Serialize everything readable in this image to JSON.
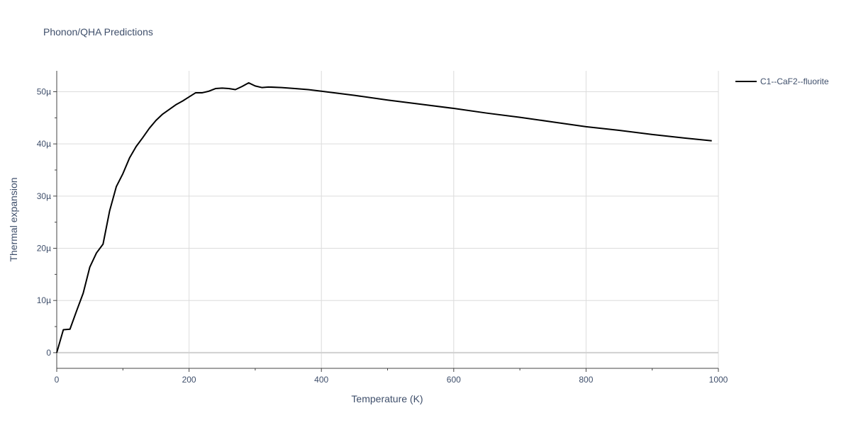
{
  "chart_data": {
    "type": "line",
    "title": "Phonon/QHA Predictions",
    "xlabel": "Temperature (K)",
    "ylabel": "Thermal expansion",
    "xlim": [
      0,
      1000
    ],
    "ylim": [
      -3e-06,
      5.4e-05
    ],
    "grid": true,
    "legend_position": "top-right",
    "x_ticks": [
      {
        "value": 0,
        "label": "0"
      },
      {
        "value": 200,
        "label": "200"
      },
      {
        "value": 400,
        "label": "400"
      },
      {
        "value": 600,
        "label": "600"
      },
      {
        "value": 800,
        "label": "800"
      },
      {
        "value": 1000,
        "label": "1000"
      }
    ],
    "y_ticks": [
      {
        "value": 0,
        "label": "0"
      },
      {
        "value": 1e-05,
        "label": "10µ"
      },
      {
        "value": 2e-05,
        "label": "20µ"
      },
      {
        "value": 3e-05,
        "label": "30µ"
      },
      {
        "value": 4e-05,
        "label": "40µ"
      },
      {
        "value": 5e-05,
        "label": "50µ"
      }
    ],
    "series": [
      {
        "name": "C1--CaF2--fluorite",
        "color": "#000000",
        "x": [
          0,
          10,
          20,
          30,
          40,
          50,
          60,
          70,
          80,
          90,
          100,
          110,
          120,
          130,
          140,
          150,
          160,
          170,
          180,
          190,
          200,
          210,
          220,
          230,
          240,
          250,
          260,
          270,
          280,
          290,
          300,
          310,
          320,
          340,
          360,
          380,
          400,
          450,
          500,
          550,
          600,
          650,
          700,
          750,
          800,
          850,
          900,
          950,
          990
        ],
        "y": [
          0,
          4.4e-06,
          4.5e-06,
          8e-06,
          1.14e-05,
          1.64e-05,
          1.91e-05,
          2.08e-05,
          2.72e-05,
          3.18e-05,
          3.43e-05,
          3.73e-05,
          3.95e-05,
          4.12e-05,
          4.3e-05,
          4.45e-05,
          4.57e-05,
          4.66e-05,
          4.75e-05,
          4.82e-05,
          4.9e-05,
          4.98e-05,
          4.98e-05,
          5.01e-05,
          5.06e-05,
          5.07e-05,
          5.06e-05,
          5.04e-05,
          5.1e-05,
          5.17e-05,
          5.11e-05,
          5.08e-05,
          5.09e-05,
          5.08e-05,
          5.06e-05,
          5.04e-05,
          5.01e-05,
          4.93e-05,
          4.84e-05,
          4.76e-05,
          4.68e-05,
          4.59e-05,
          4.51e-05,
          4.42e-05,
          4.33e-05,
          4.26e-05,
          4.18e-05,
          4.11e-05,
          4.06e-05
        ]
      }
    ]
  }
}
